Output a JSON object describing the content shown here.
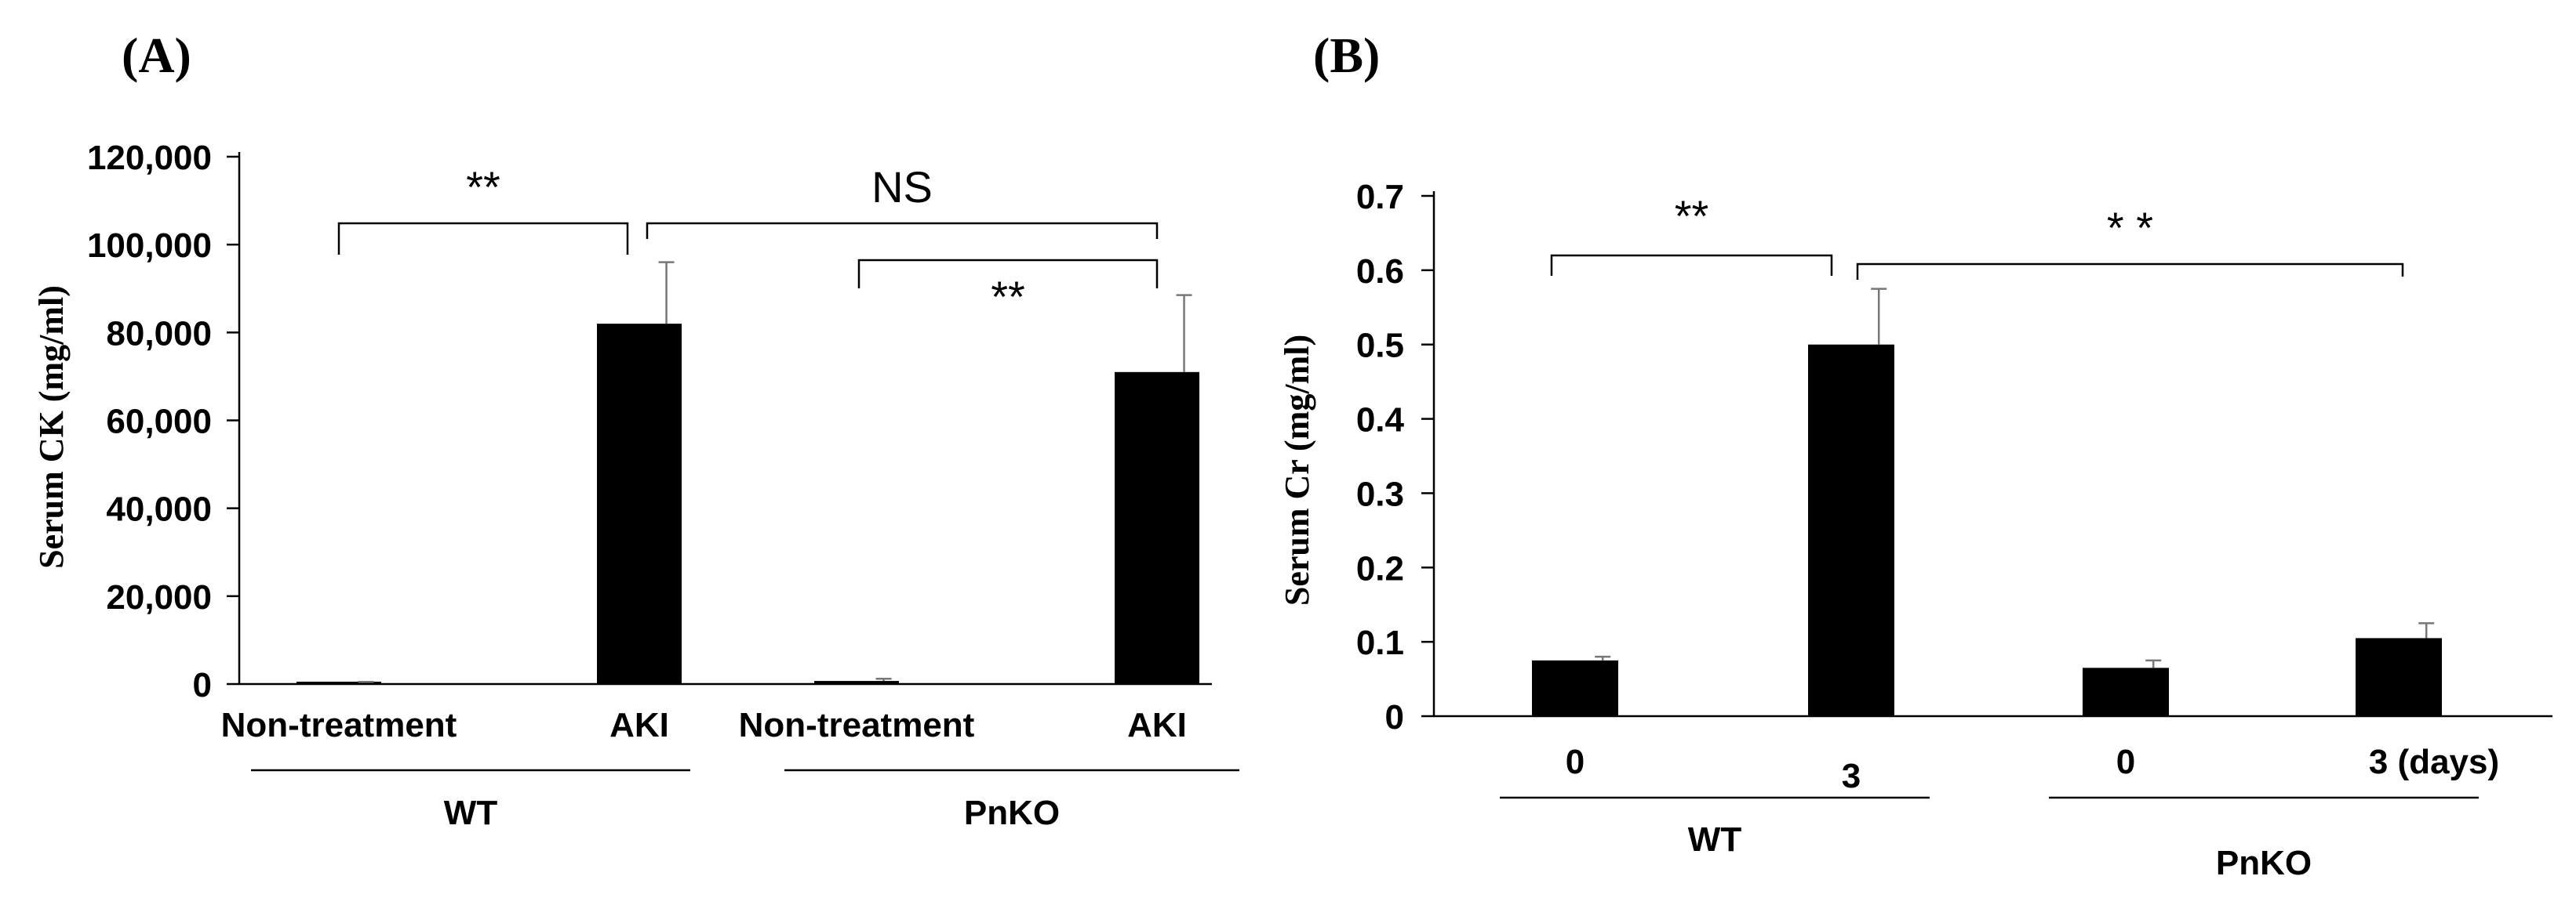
{
  "chart_data": [
    {
      "type": "bar",
      "panel_label": "(A)",
      "ylabel": "Serum CK (mg/ml)",
      "ylim": [
        0,
        120000
      ],
      "yticks": [
        "0",
        "20,000",
        "40,000",
        "60,000",
        "80,000",
        "100,000",
        "120,000"
      ],
      "categories": [
        "Non-treatment",
        "AKI",
        "Non-treatment",
        "AKI"
      ],
      "values": [
        200,
        82000,
        700,
        71000
      ],
      "errors": [
        300,
        14000,
        500,
        17500
      ],
      "groups": [
        {
          "label": "WT",
          "categories": [
            0,
            1
          ]
        },
        {
          "label": "PnKO",
          "categories": [
            2,
            3
          ]
        }
      ],
      "annotations": [
        {
          "from": 0,
          "to": 1,
          "text": "**"
        },
        {
          "from": 1,
          "to": 3,
          "text": "NS"
        },
        {
          "from": 2,
          "to": 3,
          "text": "**"
        }
      ]
    },
    {
      "type": "bar",
      "panel_label": "(B)",
      "ylabel": "Serum Cr (mg/ml)",
      "ylim": [
        0,
        0.7
      ],
      "yticks": [
        "0",
        "0.1",
        "0.2",
        "0.3",
        "0.4",
        "0.5",
        "0.6",
        "0.7"
      ],
      "categories": [
        "0",
        "3",
        "0",
        "3  (days)"
      ],
      "values": [
        0.075,
        0.5,
        0.065,
        0.105
      ],
      "errors": [
        0.005,
        0.075,
        0.01,
        0.02
      ],
      "groups": [
        {
          "label": "WT",
          "categories": [
            0,
            1
          ]
        },
        {
          "label": "PnKO",
          "categories": [
            2,
            3
          ]
        }
      ],
      "annotations": [
        {
          "from": 0,
          "to": 1,
          "text": "**"
        },
        {
          "from": 1,
          "to": 3,
          "text": "* *"
        }
      ]
    }
  ]
}
